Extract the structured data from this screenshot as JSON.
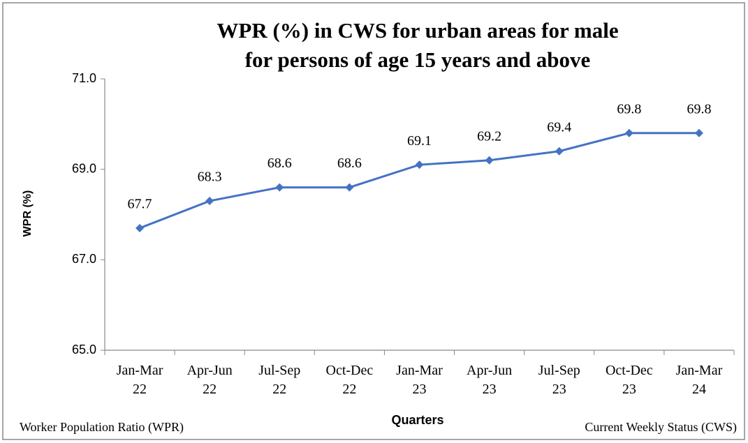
{
  "chart_data": {
    "type": "line",
    "title": [
      "WPR (%) in CWS for urban areas for male",
      "for persons of age 15 years and above"
    ],
    "y_label": "WPR (%)",
    "x_label": "Quarters",
    "categories": [
      "Jan-Mar 22",
      "Apr-Jun 22",
      "Jul-Sep 22",
      "Oct-Dec 22",
      "Jan-Mar 23",
      "Apr-Jun 23",
      "Jul-Sep 23",
      "Oct-Dec 23",
      "Jan-Mar 24"
    ],
    "values": [
      67.7,
      68.3,
      68.6,
      68.6,
      69.1,
      69.2,
      69.4,
      69.8,
      69.8
    ],
    "color": "#4472c4",
    "ylim": [
      65,
      71
    ],
    "yticks": [
      {
        "value": 65,
        "label": "65.0"
      },
      {
        "value": 67,
        "label": "67.0"
      },
      {
        "value": 69,
        "label": "69.0"
      },
      {
        "value": 71,
        "label": "71.0"
      }
    ],
    "grid": false,
    "footnotes": [
      "Worker Population Ratio (WPR)",
      "Current Weekly Status (CWS)"
    ]
  }
}
